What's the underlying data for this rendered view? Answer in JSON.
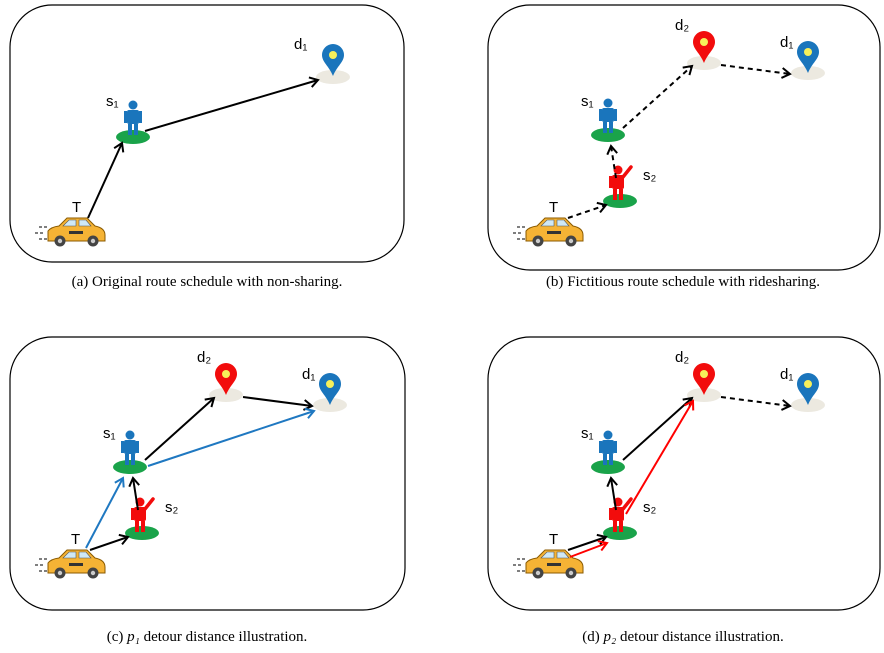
{
  "panels": [
    {
      "labels": [
        "T",
        "s₁",
        "d₁"
      ],
      "caption": {
        "tag": "(a)",
        "text": "Original route schedule with non-sharing."
      }
    },
    {
      "labels": [
        "T",
        "s₂",
        "s₁",
        "d₂",
        "d₁"
      ],
      "caption": {
        "tag": "(b)",
        "text": "Fictitious route schedule with ridesharing."
      }
    },
    {
      "labels": [
        "T",
        "s₂",
        "s₁",
        "d₂",
        "d₁"
      ],
      "caption": {
        "tag": "(c)",
        "symbol": "p₁",
        "text": "detour distance illustration."
      }
    },
    {
      "labels": [
        "T",
        "s₂",
        "s₁",
        "d₂",
        "d₁"
      ],
      "caption": {
        "tag": "(d)",
        "symbol": "p₂",
        "text": "detour distance illustration."
      }
    }
  ]
}
